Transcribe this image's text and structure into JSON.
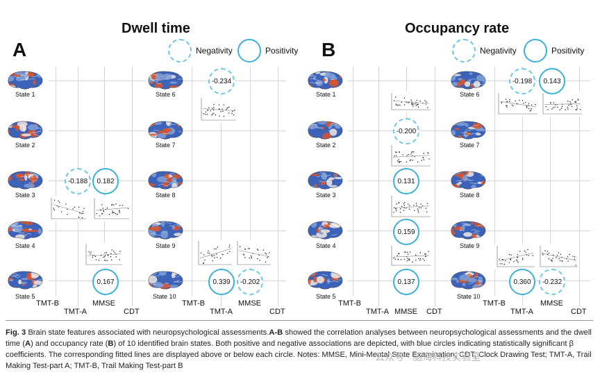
{
  "panelA": {
    "letter": "A",
    "title": "Dwell time",
    "legend_negative": "Negativity",
    "legend_positive": "Positivity",
    "states_left": [
      "State 1",
      "State 2",
      "State 3",
      "State 4",
      "State 5"
    ],
    "states_right": [
      "State 6",
      "State 7",
      "State 8",
      "State 9",
      "State 10"
    ],
    "cols_left": [
      "TMT-B",
      "TMT-A",
      "MMSE",
      "CDT"
    ],
    "cols_right": [
      "TMT-B",
      "TMT-A",
      "MMSE",
      "CDT"
    ],
    "values": [
      "-0.188",
      "0.182",
      "0.167",
      "-0.234",
      "0.339",
      "-0.202"
    ]
  },
  "panelB": {
    "letter": "B",
    "title": "Occupancy rate",
    "legend_negative": "Negativity",
    "legend_positive": "Positivity",
    "states_left": [
      "State 1",
      "State 2",
      "State 3",
      "State 4",
      "State 5"
    ],
    "states_right": [
      "State 6",
      "State 7",
      "State 8",
      "State 9",
      "State 10"
    ],
    "cols_left": [
      "TMT-B",
      "TMT-A",
      "MMSE",
      "CDT"
    ],
    "cols_right": [
      "TMT-B",
      "TMT-A",
      "MMSE",
      "CDT"
    ],
    "values": [
      "-0.200",
      "0.131",
      "0.159",
      "0.137",
      "-0.198",
      "0.143",
      "0.360",
      "-0.232"
    ]
  },
  "caption": {
    "fig": "Fig. 3",
    "p1": " Brain state features associated with neuropsychological assessments.",
    "ab": "A-B",
    "p2": " showed the correlation analyses between neuropsychological assessments and the dwell time (",
    "a": "A",
    "p3": ") and occupancy rate (",
    "b": "B",
    "p4": ") of 10 identified brain states. Both positive and negative associations are depicted, with blue circles indicating statistically significant β coefficients. The corresponding fitted lines are displayed above or below each circle. Notes: MMSE, Mini-Mental State Examination; CDT, Clock Drawing Test; TMT-A, Trail Making Test-part A; TMT-B, Trail Making Test-part B"
  },
  "watermark": "公众号 · 脑海科技实验室",
  "colors": {
    "circle": "#3bb1d8",
    "brain_blue": "#3d63b8",
    "brain_red": "#d7552e"
  }
}
